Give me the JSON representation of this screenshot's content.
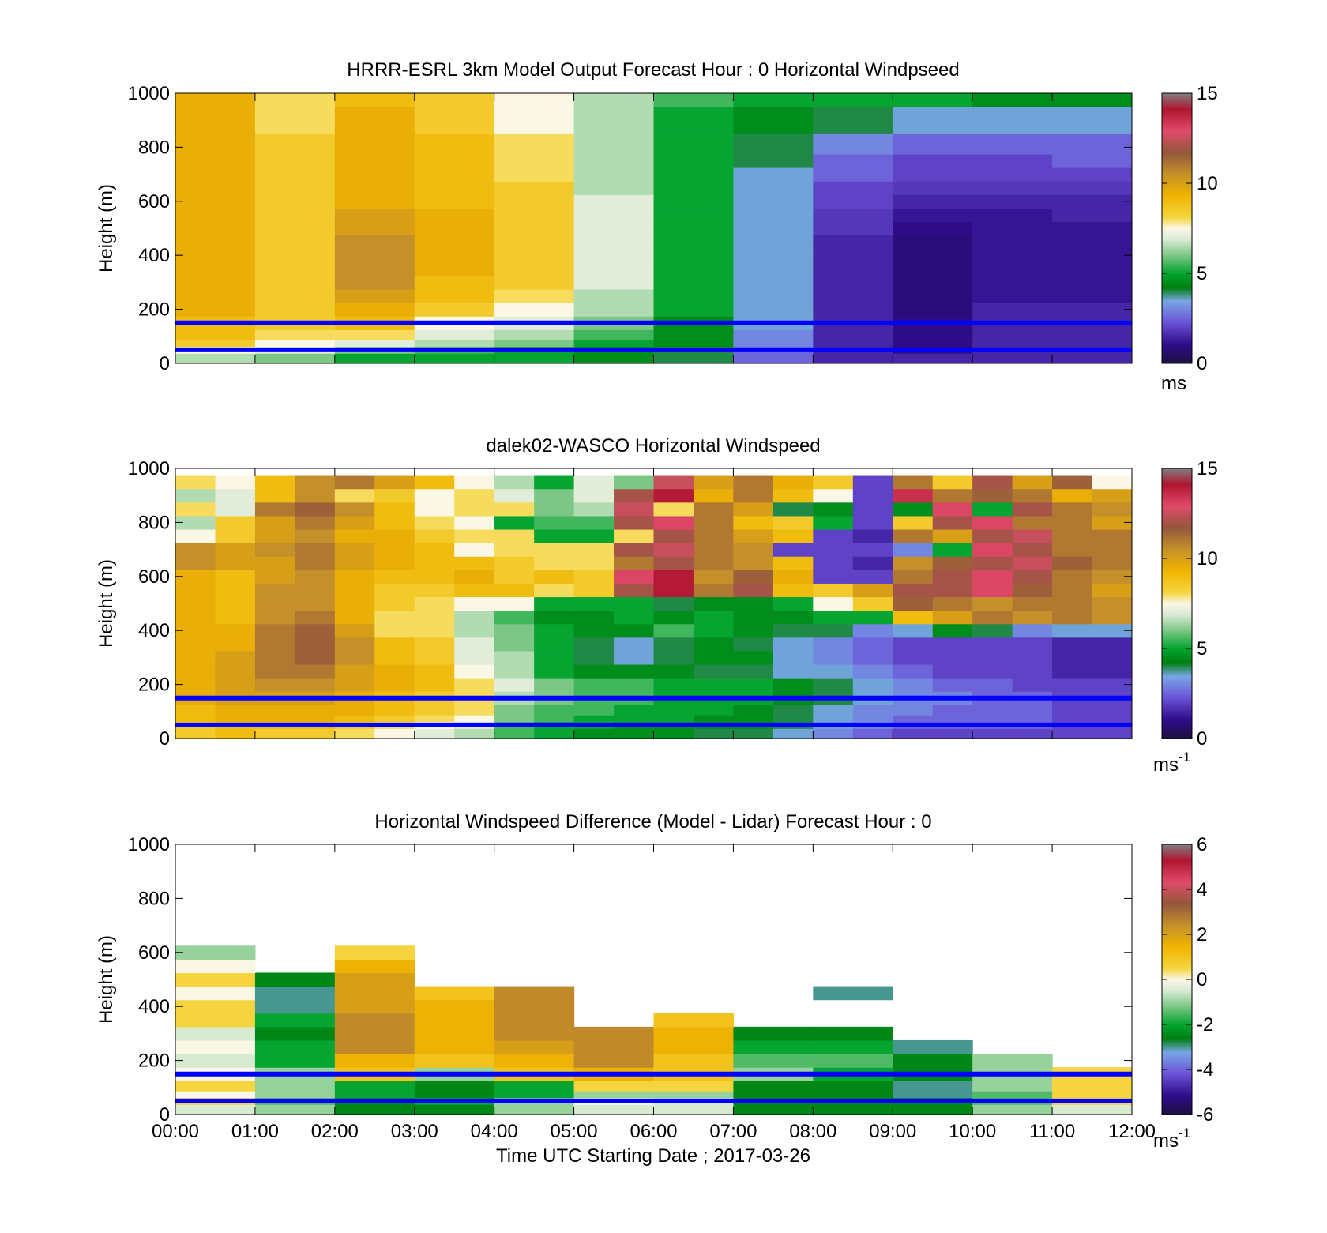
{
  "figure": {
    "xlabel": "Time UTC  Starting Date ; 2017-03-26",
    "x_ticks": [
      "00:00",
      "01:00",
      "02:00",
      "03:00",
      "04:00",
      "05:00",
      "06:00",
      "07:00",
      "08:00",
      "09:00",
      "10:00",
      "11:00",
      "12:00"
    ],
    "reference_line_color": "#0000ff",
    "reference_heights": [
      150,
      50
    ]
  },
  "chart_data": [
    {
      "type": "heatmap",
      "title": "HRRR-ESRL 3km Model Output   Forecast Hour : 0 Horizontal Windpseed",
      "ylabel": "Height (m)",
      "ylim": [
        0,
        1000
      ],
      "y_ticks": [
        0,
        200,
        400,
        600,
        800,
        1000
      ],
      "xlim_hours": [
        0,
        12
      ],
      "colorbar": {
        "min": 0,
        "max": 15,
        "ticks": [
          0,
          5,
          10,
          15
        ],
        "unit": "ms"
      },
      "levels_m": [
        25,
        50,
        75,
        100,
        150,
        200,
        250,
        300,
        350,
        400,
        450,
        500,
        550,
        600,
        650,
        700,
        750,
        800,
        900,
        1000
      ],
      "times_h": [
        0,
        1,
        2,
        3,
        4,
        5,
        6,
        7,
        8,
        9,
        10,
        11
      ],
      "values": [
        [
          6.5,
          6.0,
          5.0,
          5.0,
          5.0,
          4.5,
          4.0,
          2.5,
          1.5,
          1.5,
          1.5,
          1.5
        ],
        [
          7.5,
          7.0,
          6.0,
          5.5,
          5.0,
          4.5,
          4.0,
          2.5,
          1.5,
          1.0,
          1.5,
          1.5
        ],
        [
          8.5,
          7.5,
          7.0,
          6.5,
          6.0,
          5.0,
          4.5,
          3.0,
          1.5,
          1.0,
          1.5,
          1.5
        ],
        [
          9.0,
          8.0,
          8.0,
          7.0,
          6.5,
          5.5,
          4.5,
          3.0,
          1.5,
          1.0,
          1.5,
          1.5
        ],
        [
          9.0,
          8.5,
          9.0,
          7.5,
          7.0,
          6.0,
          4.5,
          3.5,
          1.5,
          1.0,
          1.5,
          1.5
        ],
        [
          9.5,
          8.5,
          9.5,
          8.5,
          7.5,
          6.5,
          5.0,
          3.5,
          1.5,
          0.8,
          1.5,
          1.5
        ],
        [
          9.5,
          8.5,
          10.0,
          9.0,
          8.0,
          6.5,
          5.0,
          3.5,
          1.5,
          0.8,
          1.2,
          1.2
        ],
        [
          9.5,
          8.5,
          10.5,
          9.0,
          8.5,
          7.0,
          5.0,
          3.5,
          1.5,
          0.8,
          1.2,
          1.2
        ],
        [
          9.5,
          8.5,
          10.5,
          9.5,
          8.5,
          7.0,
          5.0,
          3.5,
          1.5,
          0.8,
          1.2,
          1.2
        ],
        [
          9.5,
          8.5,
          10.5,
          9.5,
          8.5,
          7.0,
          5.0,
          3.5,
          1.5,
          0.8,
          1.2,
          1.2
        ],
        [
          9.5,
          8.5,
          10.5,
          9.5,
          8.5,
          7.0,
          5.0,
          3.5,
          1.5,
          0.8,
          1.2,
          1.2
        ],
        [
          9.5,
          8.5,
          10.0,
          9.5,
          8.5,
          7.0,
          5.0,
          3.5,
          1.8,
          1.0,
          1.2,
          1.2
        ],
        [
          9.5,
          8.5,
          10.0,
          9.5,
          8.5,
          7.0,
          5.0,
          3.5,
          1.8,
          1.2,
          1.2,
          1.5
        ],
        [
          9.5,
          8.5,
          9.5,
          9.0,
          8.5,
          7.0,
          5.0,
          3.5,
          2.0,
          1.5,
          1.5,
          1.5
        ],
        [
          9.5,
          8.5,
          9.5,
          9.0,
          8.5,
          6.5,
          5.0,
          3.5,
          2.0,
          1.8,
          1.8,
          1.8
        ],
        [
          9.5,
          8.5,
          9.5,
          9.0,
          8.0,
          6.5,
          5.0,
          3.5,
          2.5,
          2.0,
          2.0,
          2.0
        ],
        [
          9.5,
          8.5,
          9.5,
          9.0,
          8.0,
          6.5,
          5.0,
          4.0,
          2.5,
          2.0,
          2.0,
          2.5
        ],
        [
          9.5,
          8.5,
          9.5,
          9.0,
          8.0,
          6.5,
          5.0,
          4.0,
          3.0,
          2.5,
          2.5,
          2.5
        ],
        [
          9.5,
          8.0,
          9.5,
          8.5,
          7.5,
          6.5,
          5.0,
          4.5,
          4.0,
          3.5,
          3.5,
          3.5
        ],
        [
          9.5,
          8.0,
          9.0,
          8.5,
          7.5,
          6.5,
          5.5,
          5.0,
          5.0,
          5.0,
          4.5,
          4.5
        ]
      ]
    },
    {
      "type": "heatmap",
      "title": "dalek02-WASCO  Horizontal Windspeed",
      "ylabel": "Height (m)",
      "ylim": [
        0,
        1000
      ],
      "y_ticks": [
        0,
        200,
        400,
        600,
        800,
        1000
      ],
      "xlim_hours": [
        0,
        12
      ],
      "colorbar": {
        "min": 0,
        "max": 15,
        "ticks": [
          0,
          5,
          10,
          15
        ],
        "unit": "ms",
        "unit_exponent": "-1"
      },
      "levels_m": [
        25,
        50,
        75,
        100,
        150,
        200,
        250,
        300,
        350,
        400,
        450,
        500,
        550,
        600,
        650,
        700,
        750,
        800,
        850,
        900,
        950
      ],
      "times_h": [
        0,
        0.5,
        1,
        1.5,
        2,
        2.5,
        3,
        3.5,
        4,
        4.5,
        5,
        5.5,
        6,
        6.5,
        7,
        7.5,
        8,
        8.5,
        9,
        9.5,
        10,
        10.5,
        11,
        11.5
      ],
      "values": [
        [
          8.5,
          9.0,
          8.5,
          8.5,
          8.0,
          7.5,
          7.0,
          6.5,
          5.5,
          5.0,
          4.5,
          4.5,
          4.5,
          4.0,
          4.0,
          3.5,
          3.0,
          2.5,
          2.0,
          2.0,
          2.0,
          2.0,
          2.0,
          2.0
        ],
        [
          8.5,
          9.0,
          9.0,
          9.0,
          8.5,
          8.0,
          7.5,
          7.0,
          5.5,
          5.0,
          5.0,
          4.5,
          4.5,
          4.5,
          4.5,
          4.0,
          3.5,
          3.0,
          2.5,
          2.5,
          2.5,
          2.5,
          2.0,
          2.0
        ],
        [
          9.0,
          9.5,
          9.5,
          9.5,
          9.0,
          8.5,
          8.0,
          7.5,
          6.0,
          5.5,
          5.0,
          5.0,
          5.0,
          4.5,
          4.5,
          4.0,
          3.5,
          3.0,
          2.5,
          2.5,
          2.5,
          2.5,
          2.0,
          2.0
        ],
        [
          9.0,
          9.5,
          9.5,
          9.5,
          9.5,
          9.0,
          8.5,
          8.0,
          6.0,
          5.5,
          5.5,
          5.0,
          5.0,
          5.0,
          4.5,
          4.0,
          3.5,
          3.0,
          3.0,
          2.5,
          2.5,
          2.5,
          2.0,
          2.0
        ],
        [
          9.5,
          10.0,
          10.0,
          10.0,
          9.5,
          9.0,
          8.5,
          8.0,
          6.5,
          6.0,
          5.5,
          5.5,
          5.0,
          5.0,
          5.0,
          4.5,
          4.0,
          3.5,
          3.0,
          3.0,
          2.5,
          2.5,
          2.0,
          2.0
        ],
        [
          9.5,
          10.0,
          10.5,
          10.5,
          10.0,
          9.5,
          9.0,
          8.0,
          7.0,
          6.0,
          5.5,
          5.5,
          5.0,
          5.0,
          5.0,
          4.5,
          4.0,
          3.5,
          3.0,
          2.5,
          2.5,
          2.0,
          2.0,
          2.0
        ],
        [
          9.5,
          10.0,
          11.0,
          11.0,
          10.0,
          9.5,
          9.0,
          7.5,
          6.5,
          5.0,
          4.5,
          4.5,
          4.5,
          4.0,
          4.0,
          3.5,
          3.5,
          3.0,
          2.5,
          2.0,
          2.0,
          2.0,
          1.5,
          1.5
        ],
        [
          9.5,
          10.0,
          11.0,
          11.5,
          10.5,
          9.0,
          8.5,
          7.0,
          6.5,
          5.0,
          4.0,
          3.5,
          4.0,
          4.5,
          4.5,
          3.5,
          3.0,
          2.5,
          2.0,
          2.0,
          2.0,
          2.0,
          1.5,
          1.5
        ],
        [
          9.5,
          9.5,
          11.0,
          11.5,
          10.5,
          9.0,
          8.5,
          7.0,
          6.0,
          5.0,
          4.0,
          3.5,
          4.0,
          4.5,
          4.0,
          3.5,
          3.0,
          2.5,
          2.0,
          2.0,
          2.0,
          2.0,
          1.5,
          1.5
        ],
        [
          9.5,
          9.5,
          11.0,
          11.5,
          10.0,
          8.0,
          8.0,
          6.5,
          6.0,
          5.0,
          4.5,
          4.5,
          5.5,
          5.0,
          4.5,
          4.0,
          4.0,
          3.0,
          3.5,
          4.5,
          4.0,
          3.0,
          3.5,
          3.5
        ],
        [
          9.5,
          9.0,
          10.5,
          11.0,
          9.5,
          8.0,
          8.0,
          6.5,
          5.5,
          4.5,
          4.5,
          5.0,
          4.5,
          5.0,
          4.5,
          4.5,
          5.0,
          5.0,
          9.0,
          10.0,
          11.0,
          10.5,
          11.0,
          10.5
        ],
        [
          9.5,
          9.0,
          10.5,
          10.5,
          9.5,
          8.5,
          8.0,
          7.5,
          7.5,
          5.0,
          5.0,
          5.0,
          4.0,
          4.5,
          4.5,
          5.0,
          7.5,
          8.5,
          11.5,
          11.0,
          10.5,
          11.0,
          11.0,
          10.5
        ],
        [
          9.5,
          9.0,
          10.5,
          10.5,
          9.5,
          8.5,
          8.5,
          9.0,
          9.0,
          8.0,
          8.5,
          12.0,
          14.0,
          11.0,
          12.0,
          9.0,
          8.5,
          10.0,
          12.0,
          12.0,
          13.0,
          11.5,
          11.0,
          10.0
        ],
        [
          9.5,
          9.0,
          10.0,
          10.5,
          9.5,
          9.0,
          9.0,
          9.5,
          8.5,
          9.0,
          8.5,
          13.0,
          14.0,
          10.5,
          11.5,
          9.5,
          2.0,
          2.0,
          11.0,
          12.0,
          13.0,
          12.0,
          11.0,
          10.5
        ],
        [
          10.5,
          10.0,
          10.0,
          11.0,
          10.0,
          9.5,
          9.0,
          9.0,
          8.5,
          8.0,
          8.0,
          11.0,
          12.0,
          11.0,
          10.5,
          9.0,
          2.0,
          1.5,
          10.5,
          11.5,
          12.0,
          12.5,
          11.5,
          11.0
        ],
        [
          10.5,
          10.0,
          10.5,
          11.0,
          10.0,
          9.5,
          9.0,
          7.5,
          8.0,
          8.0,
          8.0,
          12.0,
          12.5,
          11.0,
          10.5,
          2.0,
          2.0,
          2.0,
          3.0,
          5.0,
          13.0,
          12.0,
          11.0,
          11.0
        ],
        [
          7.5,
          8.5,
          10.0,
          10.5,
          9.5,
          9.5,
          8.5,
          8.0,
          8.0,
          5.0,
          5.0,
          8.0,
          12.0,
          11.0,
          10.0,
          9.0,
          2.0,
          1.5,
          11.0,
          10.0,
          12.0,
          12.5,
          11.0,
          11.0
        ],
        [
          6.5,
          8.5,
          10.0,
          11.0,
          10.0,
          9.0,
          8.0,
          7.5,
          5.0,
          5.5,
          5.5,
          12.0,
          13.0,
          11.0,
          9.0,
          8.5,
          5.0,
          2.0,
          8.5,
          12.0,
          13.0,
          11.0,
          11.0,
          10.0
        ],
        [
          8.0,
          7.0,
          11.0,
          11.5,
          10.5,
          9.0,
          7.5,
          8.0,
          8.0,
          6.0,
          6.5,
          12.5,
          8.0,
          11.0,
          10.0,
          4.0,
          4.5,
          2.0,
          4.5,
          13.0,
          5.0,
          12.0,
          11.0,
          10.5
        ],
        [
          6.5,
          7.0,
          9.0,
          10.5,
          8.0,
          8.5,
          7.5,
          8.0,
          7.0,
          6.0,
          7.0,
          12.0,
          14.0,
          9.5,
          11.0,
          9.0,
          7.5,
          2.0,
          13.5,
          11.0,
          11.5,
          11.0,
          9.5,
          10.0
        ],
        [
          8.0,
          7.5,
          9.0,
          10.5,
          11.0,
          10.0,
          9.0,
          7.5,
          6.5,
          5.0,
          7.0,
          6.0,
          12.5,
          10.0,
          11.0,
          9.5,
          8.5,
          2.0,
          11.0,
          8.5,
          12.0,
          10.0,
          11.5,
          7.5
        ]
      ]
    },
    {
      "type": "heatmap",
      "title": "Horizontal Windspeed Difference (Model - Lidar) Forecast Hour : 0",
      "ylabel": "Height (m)",
      "ylim": [
        0,
        1000
      ],
      "y_ticks": [
        0,
        200,
        400,
        600,
        800,
        1000
      ],
      "xlim_hours": [
        0,
        12
      ],
      "colorbar": {
        "min": -6,
        "max": 6,
        "ticks": [
          -6,
          -4,
          -2,
          0,
          2,
          4,
          6
        ],
        "unit": "ms",
        "unit_exponent": "-1"
      },
      "levels_m": [
        25,
        50,
        75,
        100,
        150,
        200,
        250,
        300,
        350,
        400,
        450,
        500,
        550,
        600
      ],
      "times_h": [
        0,
        1,
        2,
        3,
        4,
        5,
        6,
        7,
        8,
        9,
        10,
        11
      ],
      "values": [
        [
          -0.5,
          -1.0,
          -2.5,
          -2.5,
          -1.0,
          -0.5,
          -0.5,
          -2.5,
          -2.5,
          -2.5,
          -1.0,
          -0.5
        ],
        [
          0.5,
          -1.5,
          -2.5,
          -2.0,
          -1.0,
          0.0,
          -0.5,
          -2.5,
          -2.5,
          -2.5,
          -1.5,
          0.5
        ],
        [
          0.0,
          -1.0,
          -2.0,
          -2.5,
          -2.0,
          -1.0,
          -1.0,
          -2.5,
          -2.5,
          -3.0,
          -1.5,
          0.5
        ],
        [
          0.5,
          -1.0,
          -2.0,
          -2.5,
          -2.0,
          0.5,
          0.5,
          -2.5,
          -2.5,
          -3.0,
          -1.0,
          0.5
        ],
        [
          0.0,
          -1.0,
          1.0,
          -1.0,
          1.0,
          1.5,
          1.0,
          -1.0,
          -2.0,
          -2.5,
          -1.0,
          0.5
        ],
        [
          -0.5,
          -2.0,
          1.5,
          1.0,
          1.5,
          2.5,
          1.0,
          -1.5,
          -1.5,
          -2.5,
          -1.0,
          null
        ],
        [
          0.0,
          -2.0,
          2.5,
          1.5,
          2.0,
          2.5,
          1.5,
          -2.0,
          -2.0,
          -3.0,
          null,
          null
        ],
        [
          -0.5,
          -2.5,
          2.5,
          1.5,
          2.5,
          2.5,
          1.5,
          -2.5,
          -2.5,
          null,
          null,
          null
        ],
        [
          0.5,
          -2.0,
          2.5,
          1.5,
          2.5,
          null,
          1.0,
          null,
          null,
          null,
          null,
          null
        ],
        [
          0.5,
          -3.0,
          2.0,
          1.5,
          2.5,
          null,
          null,
          null,
          null,
          null,
          null,
          null
        ],
        [
          0.0,
          -3.0,
          2.0,
          1.0,
          2.5,
          null,
          null,
          null,
          -3.0,
          null,
          null,
          null
        ],
        [
          0.5,
          -2.5,
          2.0,
          null,
          null,
          null,
          null,
          null,
          null,
          null,
          null,
          null
        ],
        [
          0.0,
          null,
          1.5,
          null,
          null,
          null,
          null,
          null,
          null,
          null,
          null,
          null
        ],
        [
          -1.0,
          null,
          0.5,
          null,
          null,
          null,
          null,
          null,
          null,
          null,
          null,
          null
        ]
      ]
    }
  ]
}
